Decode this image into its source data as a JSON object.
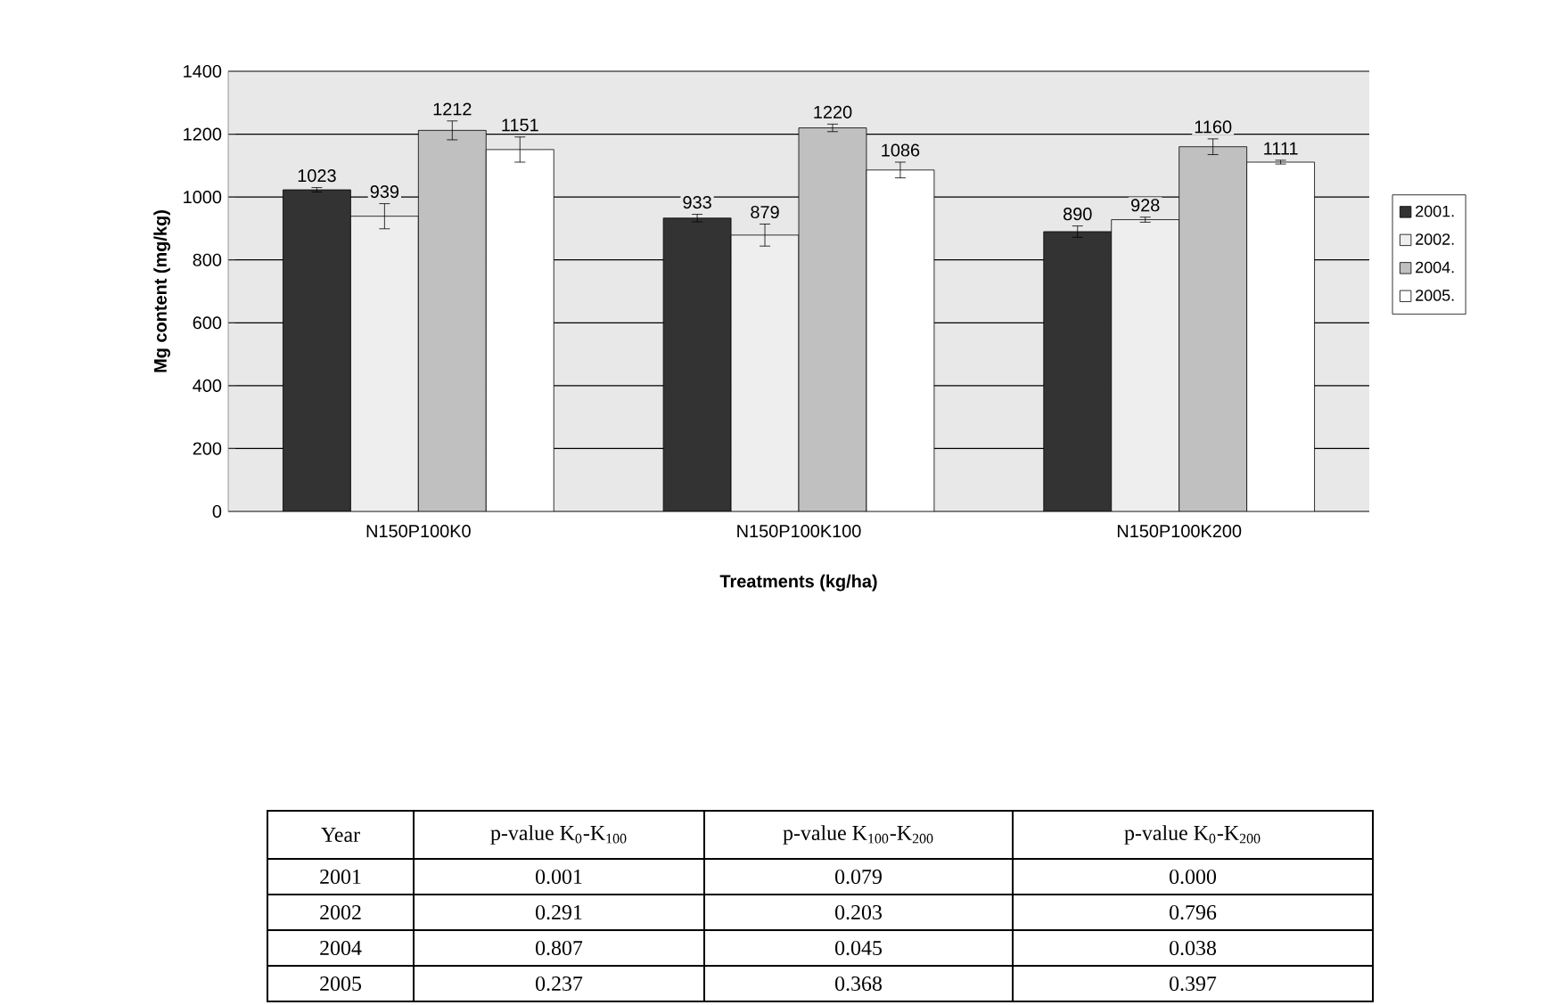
{
  "chart_data": {
    "type": "bar",
    "xlabel": "Treatments (kg/ha)",
    "ylabel": "Mg content (mg/kg)",
    "categories": [
      "N150P100K0",
      "N150P100K100",
      "N150P100K200"
    ],
    "series": [
      {
        "name": "2001.",
        "color": "#333333",
        "values": [
          1023,
          933,
          890
        ],
        "errors": [
          7,
          12,
          18
        ]
      },
      {
        "name": "2002.",
        "color": "#eeeeee",
        "values": [
          939,
          879,
          928
        ],
        "errors": [
          40,
          35,
          8
        ]
      },
      {
        "name": "2004.",
        "color": "#c0c0c0",
        "values": [
          1212,
          1220,
          1160
        ],
        "errors": [
          30,
          12,
          25
        ]
      },
      {
        "name": "2005.",
        "color": "#ffffff",
        "values": [
          1151,
          1086,
          1111
        ],
        "errors": [
          40,
          25,
          6
        ]
      }
    ],
    "ylim": [
      0,
      1400
    ],
    "yticks": [
      0,
      200,
      400,
      600,
      800,
      1000,
      1200,
      1400
    ],
    "grid": "y",
    "legend": "right",
    "data_labels": true,
    "annotations": [
      "Year",
      "p-value K$_{0}$-K$_{100}$",
      "p-value K$_{100}$-K$_{200}$",
      "p-value K$_{0}$-K$_{200}$",
      "2001",
      "0.001",
      "0.079",
      "0.000",
      "2002",
      "0.291",
      "0.203",
      "0.796",
      "2004",
      "0.807",
      "0.045",
      "0.038",
      "2005",
      "0.237",
      "0.368",
      "0.397"
    ]
  }
}
